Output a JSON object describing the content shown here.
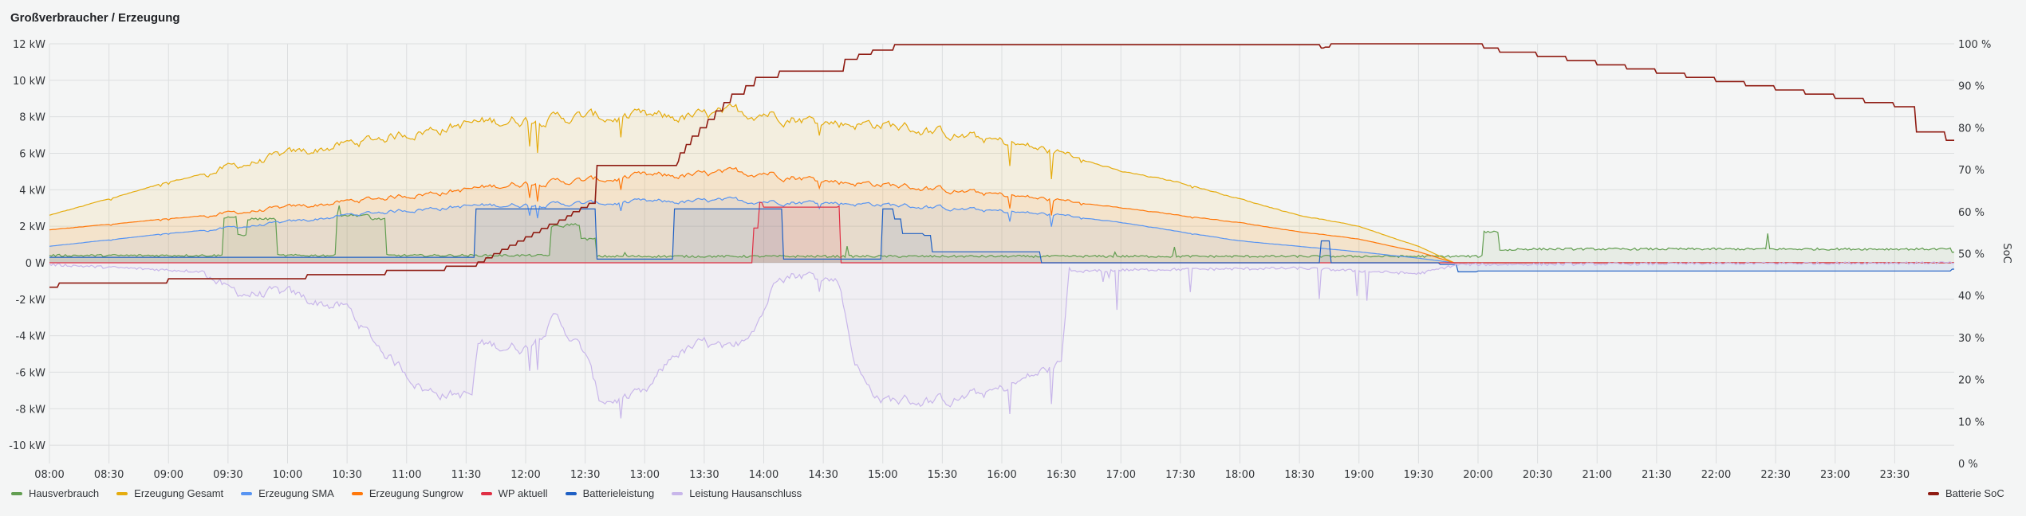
{
  "panel": {
    "title": "Großverbraucher / Erzeugung"
  },
  "chart_data": {
    "type": "line",
    "title": "Großverbraucher / Erzeugung",
    "x_range": [
      "08:00",
      "24:00"
    ],
    "y_left": {
      "unit": "kW",
      "range": [
        -11,
        12
      ],
      "ticks": [
        "12 kW",
        "10 kW",
        "8 kW",
        "6 kW",
        "4 kW",
        "2 kW",
        "0 W",
        "-2 kW",
        "-4 kW",
        "-6 kW",
        "-8 kW",
        "-10 kW"
      ],
      "tick_values": [
        12,
        10,
        8,
        6,
        4,
        2,
        0,
        -2,
        -4,
        -6,
        -8,
        -10
      ]
    },
    "y_right": {
      "label": "SoC",
      "unit": "%",
      "range": [
        0,
        100
      ],
      "ticks": [
        "100 %",
        "90 %",
        "80 %",
        "70 %",
        "60 %",
        "50 %",
        "40 %",
        "30 %",
        "20 %",
        "10 %",
        "0 %"
      ],
      "tick_values": [
        100,
        90,
        80,
        70,
        60,
        50,
        40,
        30,
        20,
        10,
        0
      ]
    },
    "x_ticks": [
      "08:00",
      "08:30",
      "09:00",
      "09:30",
      "10:00",
      "10:30",
      "11:00",
      "11:30",
      "12:00",
      "12:30",
      "13:00",
      "13:30",
      "14:00",
      "14:30",
      "15:00",
      "15:30",
      "16:00",
      "16:30",
      "17:00",
      "17:30",
      "18:00",
      "18:30",
      "19:00",
      "19:30",
      "20:00",
      "20:30",
      "21:00",
      "21:30",
      "22:00",
      "22:30",
      "23:00",
      "23:30"
    ],
    "grid": true,
    "legend_placement": "bottom",
    "series": [
      {
        "name": "Hausverbrauch",
        "color": "#629e51",
        "axis": "left",
        "interpolation": "step",
        "points": [
          [
            "08:00",
            0.4
          ],
          [
            "09:28",
            2.5
          ],
          [
            "09:35",
            1.5
          ],
          [
            "09:40",
            2.4
          ],
          [
            "09:55",
            0.4
          ],
          [
            "10:25",
            2.6
          ],
          [
            "10:42",
            2.4
          ],
          [
            "10:50",
            0.4
          ],
          [
            "12:13",
            2.0
          ],
          [
            "12:20",
            2.1
          ],
          [
            "12:28",
            1.3
          ],
          [
            "12:35",
            0.35
          ],
          [
            "20:02",
            1.7
          ],
          [
            "20:10",
            0.7
          ],
          [
            "20:20",
            0.75
          ],
          [
            "23:59",
            0.6
          ]
        ]
      },
      {
        "name": "Erzeugung Gesamt",
        "color": "#e5ac0e",
        "axis": "left",
        "interpolation": "linear",
        "points": [
          [
            "08:00",
            2.6
          ],
          [
            "08:30",
            3.5
          ],
          [
            "09:00",
            4.4
          ],
          [
            "09:30",
            5.2
          ],
          [
            "10:00",
            5.9
          ],
          [
            "10:30",
            6.5
          ],
          [
            "11:00",
            7.1
          ],
          [
            "11:30",
            7.6
          ],
          [
            "12:00",
            7.9
          ],
          [
            "12:30",
            8.0
          ],
          [
            "13:00",
            7.9
          ],
          [
            "13:30",
            8.0
          ],
          [
            "14:00",
            8.3
          ],
          [
            "14:30",
            7.7
          ],
          [
            "15:00",
            7.6
          ],
          [
            "15:30",
            7.1
          ],
          [
            "16:00",
            6.6
          ],
          [
            "16:30",
            6.0
          ],
          [
            "17:00",
            5.0
          ],
          [
            "17:30",
            4.4
          ],
          [
            "18:00",
            3.5
          ],
          [
            "18:30",
            2.6
          ],
          [
            "19:00",
            2.0
          ],
          [
            "19:30",
            0.9
          ],
          [
            "19:48",
            0
          ],
          [
            "23:59",
            0
          ]
        ]
      },
      {
        "name": "Erzeugung SMA",
        "color": "#5794f2",
        "axis": "left",
        "interpolation": "linear",
        "points": [
          [
            "08:00",
            0.9
          ],
          [
            "09:00",
            1.6
          ],
          [
            "10:00",
            2.2
          ],
          [
            "10:30",
            2.6
          ],
          [
            "11:00",
            2.9
          ],
          [
            "11:30",
            3.1
          ],
          [
            "12:00",
            3.2
          ],
          [
            "13:00",
            3.3
          ],
          [
            "14:00",
            3.4
          ],
          [
            "14:30",
            3.3
          ],
          [
            "15:00",
            3.2
          ],
          [
            "15:30",
            3.0
          ],
          [
            "16:00",
            2.8
          ],
          [
            "16:30",
            2.6
          ],
          [
            "17:00",
            2.2
          ],
          [
            "17:30",
            1.7
          ],
          [
            "18:00",
            1.2
          ],
          [
            "18:30",
            0.9
          ],
          [
            "19:00",
            0.6
          ],
          [
            "19:30",
            0.25
          ],
          [
            "19:48",
            0
          ],
          [
            "23:59",
            0
          ]
        ]
      },
      {
        "name": "Erzeugung Sungrow",
        "color": "#ff780a",
        "axis": "left",
        "interpolation": "linear",
        "points": [
          [
            "08:00",
            1.8
          ],
          [
            "09:00",
            2.4
          ],
          [
            "10:00",
            3.0
          ],
          [
            "11:00",
            3.7
          ],
          [
            "11:30",
            4.0
          ],
          [
            "12:00",
            4.4
          ],
          [
            "12:30",
            4.5
          ],
          [
            "13:00",
            4.7
          ],
          [
            "13:30",
            4.8
          ],
          [
            "14:00",
            5.0
          ],
          [
            "14:30",
            4.5
          ],
          [
            "15:00",
            4.3
          ],
          [
            "15:30",
            4.0
          ],
          [
            "16:00",
            3.7
          ],
          [
            "16:30",
            3.4
          ],
          [
            "17:00",
            3.0
          ],
          [
            "17:30",
            2.6
          ],
          [
            "18:00",
            2.2
          ],
          [
            "18:30",
            1.7
          ],
          [
            "19:00",
            1.3
          ],
          [
            "19:30",
            0.6
          ],
          [
            "19:48",
            0
          ],
          [
            "23:59",
            0
          ]
        ]
      },
      {
        "name": "WP aktuell",
        "color": "#e02f44",
        "axis": "left",
        "interpolation": "step",
        "points": [
          [
            "08:00",
            0
          ],
          [
            "13:55",
            1.9
          ],
          [
            "13:58",
            3.3
          ],
          [
            "14:00",
            3.05
          ],
          [
            "14:38",
            3.1
          ],
          [
            "14:39",
            0
          ],
          [
            "23:59",
            0
          ]
        ]
      },
      {
        "name": "Batterieleistung",
        "color": "#1f60c4",
        "axis": "left",
        "interpolation": "step",
        "points": [
          [
            "08:00",
            0.3
          ],
          [
            "11:35",
            2.95
          ],
          [
            "12:35",
            0.2
          ],
          [
            "13:15",
            2.95
          ],
          [
            "14:10",
            0.2
          ],
          [
            "15:00",
            2.95
          ],
          [
            "15:05",
            2.4
          ],
          [
            "15:10",
            1.6
          ],
          [
            "15:20",
            1.5
          ],
          [
            "15:25",
            0.6
          ],
          [
            "16:20",
            0
          ],
          [
            "18:40",
            1.2
          ],
          [
            "18:46",
            0
          ],
          [
            "19:40",
            -0.1
          ],
          [
            "19:50",
            -0.5
          ],
          [
            "20:00",
            -0.45
          ],
          [
            "23:59",
            -0.35
          ]
        ]
      },
      {
        "name": "Leistung Hausanschluss",
        "color": "#c8b6ea",
        "axis": "left",
        "interpolation": "linear",
        "points": [
          [
            "08:00",
            -0.1
          ],
          [
            "09:20",
            -0.5
          ],
          [
            "09:30",
            -1.6
          ],
          [
            "10:00",
            -1.8
          ],
          [
            "10:30",
            -2.5
          ],
          [
            "10:45",
            -4.5
          ],
          [
            "11:00",
            -6.0
          ],
          [
            "11:10",
            -7.0
          ],
          [
            "11:33",
            -7.3
          ],
          [
            "11:36",
            -4.5
          ],
          [
            "12:00",
            -4.6
          ],
          [
            "12:15",
            -3.0
          ],
          [
            "12:30",
            -5.0
          ],
          [
            "12:37",
            -7.5
          ],
          [
            "13:00",
            -7.4
          ],
          [
            "13:15",
            -5.0
          ],
          [
            "13:30",
            -4.5
          ],
          [
            "13:45",
            -5.0
          ],
          [
            "14:00",
            -2.5
          ],
          [
            "14:08",
            -0.4
          ],
          [
            "14:38",
            -1.0
          ],
          [
            "14:45",
            -5.0
          ],
          [
            "14:52",
            -6.8
          ],
          [
            "15:00",
            -7.5
          ],
          [
            "15:30",
            -7.6
          ],
          [
            "16:00",
            -7.0
          ],
          [
            "16:30",
            -5.5
          ],
          [
            "16:34",
            -0.5
          ],
          [
            "17:00",
            -0.4
          ],
          [
            "18:30",
            -0.3
          ],
          [
            "19:30",
            -0.6
          ],
          [
            "19:50",
            -0.1
          ],
          [
            "23:59",
            0
          ]
        ]
      },
      {
        "name": "Batterie SoC",
        "color": "#8f1b12",
        "axis": "right",
        "interpolation": "step",
        "points": [
          [
            "08:00",
            42
          ],
          [
            "08:05",
            43
          ],
          [
            "09:00",
            44
          ],
          [
            "10:10",
            45
          ],
          [
            "10:50",
            46
          ],
          [
            "11:20",
            47
          ],
          [
            "11:36",
            48
          ],
          [
            "11:40",
            49
          ],
          [
            "11:44",
            50
          ],
          [
            "11:48",
            51
          ],
          [
            "11:52",
            52
          ],
          [
            "11:56",
            53
          ],
          [
            "12:00",
            54
          ],
          [
            "12:04",
            55
          ],
          [
            "12:08",
            56
          ],
          [
            "12:12",
            57
          ],
          [
            "12:16",
            58
          ],
          [
            "12:20",
            59
          ],
          [
            "12:24",
            60
          ],
          [
            "12:28",
            61
          ],
          [
            "12:32",
            62
          ],
          [
            "12:35",
            71
          ],
          [
            "13:16",
            72
          ],
          [
            "13:18",
            74
          ],
          [
            "13:21",
            76
          ],
          [
            "13:24",
            78
          ],
          [
            "13:28",
            80
          ],
          [
            "13:32",
            82
          ],
          [
            "13:36",
            84
          ],
          [
            "13:40",
            86
          ],
          [
            "13:44",
            88
          ],
          [
            "13:50",
            90
          ],
          [
            "13:56",
            92
          ],
          [
            "14:08",
            93.5
          ],
          [
            "14:41",
            96.3
          ],
          [
            "14:48",
            97.5
          ],
          [
            "14:55",
            98.5
          ],
          [
            "15:05",
            99.8
          ],
          [
            "18:40",
            99
          ],
          [
            "18:43",
            99.2
          ],
          [
            "18:46",
            100
          ],
          [
            "20:02",
            99
          ],
          [
            "20:10",
            98
          ],
          [
            "20:30",
            97
          ],
          [
            "20:45",
            96
          ],
          [
            "21:00",
            95
          ],
          [
            "21:15",
            94
          ],
          [
            "21:30",
            93
          ],
          [
            "21:45",
            92
          ],
          [
            "22:00",
            91
          ],
          [
            "22:15",
            90
          ],
          [
            "22:30",
            89
          ],
          [
            "22:45",
            88
          ],
          [
            "23:00",
            87
          ],
          [
            "23:15",
            86
          ],
          [
            "23:30",
            85
          ],
          [
            "23:40",
            79
          ],
          [
            "23:55",
            77
          ],
          [
            "23:59",
            77
          ]
        ]
      }
    ]
  }
}
